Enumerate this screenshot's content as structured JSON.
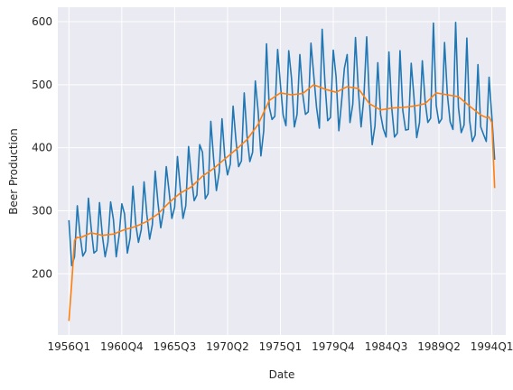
{
  "chart_data": {
    "type": "line",
    "title": "",
    "xlabel": "Date",
    "ylabel": "Beer Production",
    "grid": true,
    "legend": "none",
    "background": "#eaeaf2",
    "x_ticks": [
      "1956Q1",
      "1960Q4",
      "1965Q3",
      "1970Q2",
      "1975Q1",
      "1979Q4",
      "1984Q3",
      "1989Q2",
      "1994Q1"
    ],
    "y_ticks": [
      200,
      300,
      400,
      500,
      600
    ],
    "xlim": [
      -4,
      157
    ],
    "ylim": [
      103,
      623
    ],
    "series": [
      {
        "color": "#1f77b4",
        "x_start": 0,
        "anchors": [
          [
            0,
            285
          ],
          [
            1,
            213
          ],
          [
            2,
            227
          ],
          [
            3,
            308
          ],
          [
            4,
            262
          ],
          [
            5,
            228
          ],
          [
            6,
            236
          ],
          [
            7,
            320
          ],
          [
            8,
            272
          ],
          [
            9,
            233
          ],
          [
            10,
            237
          ],
          [
            11,
            313
          ],
          [
            12,
            261
          ],
          [
            13,
            227
          ],
          [
            14,
            250
          ],
          [
            15,
            314
          ],
          [
            16,
            286
          ],
          [
            17,
            227
          ],
          [
            18,
            260
          ],
          [
            19,
            311
          ],
          [
            20,
            295
          ],
          [
            21,
            233
          ],
          [
            22,
            257
          ],
          [
            23,
            339
          ],
          [
            24,
            279
          ],
          [
            25,
            250
          ],
          [
            26,
            270
          ],
          [
            27,
            346
          ],
          [
            28,
            294
          ],
          [
            29,
            255
          ],
          [
            30,
            278
          ],
          [
            31,
            363
          ],
          [
            32,
            313
          ],
          [
            33,
            273
          ],
          [
            34,
            300
          ],
          [
            35,
            370
          ],
          [
            36,
            331
          ],
          [
            37,
            288
          ],
          [
            38,
            306
          ],
          [
            39,
            386
          ],
          [
            40,
            335
          ],
          [
            41,
            288
          ],
          [
            42,
            308
          ],
          [
            43,
            402
          ],
          [
            44,
            353
          ],
          [
            45,
            316
          ],
          [
            46,
            325
          ],
          [
            47,
            405
          ],
          [
            48,
            393
          ],
          [
            49,
            319
          ],
          [
            50,
            327
          ],
          [
            51,
            442
          ],
          [
            52,
            383
          ],
          [
            53,
            332
          ],
          [
            54,
            361
          ],
          [
            55,
            446
          ],
          [
            56,
            387
          ],
          [
            57,
            357
          ],
          [
            58,
            374
          ],
          [
            59,
            466
          ],
          [
            60,
            413
          ],
          [
            61,
            370
          ],
          [
            62,
            379
          ],
          [
            63,
            487
          ],
          [
            64,
            419
          ],
          [
            65,
            378
          ],
          [
            66,
            393
          ],
          [
            67,
            506
          ],
          [
            68,
            458
          ],
          [
            69,
            387
          ],
          [
            70,
            427
          ],
          [
            71,
            565
          ],
          [
            72,
            465
          ],
          [
            73,
            445
          ],
          [
            74,
            450
          ],
          [
            75,
            556
          ],
          [
            76,
            500
          ],
          [
            77,
            452
          ],
          [
            78,
            435
          ],
          [
            79,
            554
          ],
          [
            80,
            510
          ],
          [
            81,
            433
          ],
          [
            82,
            453
          ],
          [
            83,
            548
          ],
          [
            84,
            486
          ],
          [
            85,
            453
          ],
          [
            86,
            457
          ],
          [
            87,
            566
          ],
          [
            88,
            515
          ],
          [
            89,
            464
          ],
          [
            90,
            431
          ],
          [
            91,
            588
          ],
          [
            92,
            503
          ],
          [
            93,
            443
          ],
          [
            94,
            448
          ],
          [
            95,
            555
          ],
          [
            96,
            513
          ],
          [
            97,
            427
          ],
          [
            98,
            473
          ],
          [
            99,
            526
          ],
          [
            100,
            548
          ],
          [
            101,
            440
          ],
          [
            102,
            469
          ],
          [
            103,
            575
          ],
          [
            104,
            493
          ],
          [
            105,
            433
          ],
          [
            106,
            480
          ],
          [
            107,
            576
          ],
          [
            108,
            475
          ],
          [
            109,
            405
          ],
          [
            110,
            435
          ],
          [
            111,
            535
          ],
          [
            112,
            453
          ],
          [
            113,
            430
          ],
          [
            114,
            417
          ],
          [
            115,
            552
          ],
          [
            116,
            464
          ],
          [
            117,
            417
          ],
          [
            118,
            423
          ],
          [
            119,
            554
          ],
          [
            120,
            459
          ],
          [
            121,
            428
          ],
          [
            122,
            429
          ],
          [
            123,
            534
          ],
          [
            124,
            481
          ],
          [
            125,
            416
          ],
          [
            126,
            440
          ],
          [
            127,
            538
          ],
          [
            128,
            474
          ],
          [
            129,
            440
          ],
          [
            130,
            447
          ],
          [
            131,
            598
          ],
          [
            132,
            467
          ],
          [
            133,
            439
          ],
          [
            134,
            446
          ],
          [
            135,
            567
          ],
          [
            136,
            485
          ],
          [
            137,
            441
          ],
          [
            138,
            429
          ],
          [
            139,
            599
          ],
          [
            140,
            464
          ],
          [
            141,
            424
          ],
          [
            142,
            436
          ],
          [
            143,
            574
          ],
          [
            144,
            443
          ],
          [
            145,
            410
          ],
          [
            146,
            420
          ],
          [
            147,
            532
          ],
          [
            148,
            433
          ],
          [
            149,
            421
          ],
          [
            150,
            410
          ],
          [
            151,
            512
          ],
          [
            152,
            449
          ],
          [
            153,
            381
          ]
        ]
      },
      {
        "color": "#ff7f0e",
        "x_start": 0,
        "anchors": [
          [
            0,
            125
          ],
          [
            1,
            185
          ],
          [
            2,
            253
          ],
          [
            3,
            258
          ],
          [
            4,
            257
          ],
          [
            8,
            265
          ],
          [
            12,
            261
          ],
          [
            16,
            263
          ],
          [
            20,
            270
          ],
          [
            24,
            275
          ],
          [
            28,
            283
          ],
          [
            32,
            295
          ],
          [
            36,
            313
          ],
          [
            40,
            328
          ],
          [
            44,
            338
          ],
          [
            48,
            355
          ],
          [
            52,
            367
          ],
          [
            56,
            382
          ],
          [
            60,
            397
          ],
          [
            64,
            413
          ],
          [
            68,
            437
          ],
          [
            72,
            475
          ],
          [
            76,
            487
          ],
          [
            80,
            484
          ],
          [
            84,
            486
          ],
          [
            88,
            500
          ],
          [
            92,
            493
          ],
          [
            96,
            488
          ],
          [
            100,
            497
          ],
          [
            104,
            494
          ],
          [
            108,
            470
          ],
          [
            112,
            460
          ],
          [
            116,
            463
          ],
          [
            120,
            464
          ],
          [
            124,
            466
          ],
          [
            128,
            470
          ],
          [
            132,
            487
          ],
          [
            136,
            484
          ],
          [
            140,
            481
          ],
          [
            144,
            466
          ],
          [
            148,
            452
          ],
          [
            150,
            448
          ],
          [
            151,
            449
          ],
          [
            152,
            440
          ],
          [
            153,
            336
          ]
        ]
      }
    ]
  }
}
